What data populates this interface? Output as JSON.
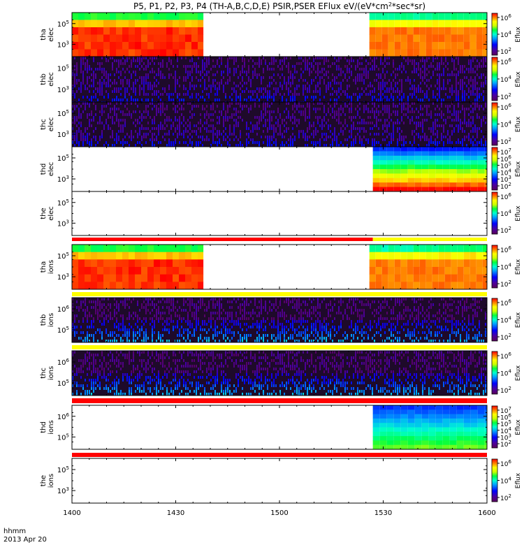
{
  "chart_data": {
    "type": "heatmap",
    "title": "P5, P1, P2, P3, P4 (TH-A,B,C,D,E) PSIR,PSER EFlux eV/(eV*cm",
    "title_sup": "2",
    "title_end": "*sec*sr)",
    "x_time_label": "hhmm",
    "x_date_label": "2013 Apr 20",
    "x_ticks": [
      "1400",
      "1430",
      "1500",
      "1530",
      "1600"
    ],
    "xlim_minutes": [
      0,
      120
    ],
    "colorbar_label": "Eflux",
    "panels": [
      {
        "name": "tha elec",
        "probe": "tha",
        "species": "elec",
        "y_ticks": [
          "10^5",
          "10^3"
        ],
        "cbar_ticks": [
          "10^6",
          "10^4",
          "10^2"
        ],
        "coverage_minutes": [
          [
            0,
            38
          ],
          [
            86,
            120
          ]
        ],
        "pattern": "dense_red",
        "bar_below": null
      },
      {
        "name": "thb elec",
        "probe": "thb",
        "species": "elec",
        "y_ticks": [
          "10^5",
          "10^3"
        ],
        "cbar_ticks": [
          "10^6",
          "10^4",
          "10^2"
        ],
        "coverage_minutes": [
          [
            0,
            120
          ]
        ],
        "pattern": "dark_noise",
        "bar_below": null
      },
      {
        "name": "thc elec",
        "probe": "thc",
        "species": "elec",
        "y_ticks": [
          "10^5",
          "10^3"
        ],
        "cbar_ticks": [
          "10^6",
          "10^4",
          "10^2"
        ],
        "coverage_minutes": [
          [
            0,
            120
          ]
        ],
        "pattern": "dark_noise",
        "bar_below": null
      },
      {
        "name": "thd elec",
        "probe": "thd",
        "species": "elec",
        "y_ticks": [
          "10^5",
          "10^3"
        ],
        "cbar_ticks": [
          "10^7",
          "10^6",
          "10^5",
          "10^4",
          "10^3",
          "10^2"
        ],
        "coverage_minutes": [
          [
            87,
            120
          ]
        ],
        "pattern": "gradient_blue_to_red",
        "bar_below": null
      },
      {
        "name": "the elec",
        "probe": "the",
        "species": "elec",
        "y_ticks": [
          "10^5",
          "10^3"
        ],
        "cbar_ticks": [
          "10^6",
          "10^4",
          "10^2"
        ],
        "coverage_minutes": [],
        "pattern": "empty",
        "bar_below": [
          {
            "from": 0,
            "to": 87,
            "color": "#ff0000"
          },
          {
            "from": 87,
            "to": 120,
            "color": "#ffff00"
          }
        ]
      },
      {
        "name": "tha ions",
        "probe": "tha",
        "species": "ions",
        "y_ticks": [
          "10^5",
          "10^3"
        ],
        "cbar_ticks": [
          "10^6",
          "10^4",
          "10^2"
        ],
        "coverage_minutes": [
          [
            0,
            38
          ],
          [
            86,
            120
          ]
        ],
        "pattern": "dense_red",
        "bar_below": [
          {
            "from": 0,
            "to": 120,
            "color": "#ffff00"
          }
        ]
      },
      {
        "name": "thb ions",
        "probe": "thb",
        "species": "ions",
        "y_ticks": [
          "10^6",
          "10^5"
        ],
        "cbar_ticks": [
          "10^6",
          "10^4",
          "10^2"
        ],
        "coverage_minutes": [
          [
            0,
            120
          ]
        ],
        "pattern": "dark_noise_blue",
        "bar_below": [
          {
            "from": 0,
            "to": 120,
            "color": "#ffff00"
          }
        ]
      },
      {
        "name": "thc ions",
        "probe": "thc",
        "species": "ions",
        "y_ticks": [
          "10^6",
          "10^5"
        ],
        "cbar_ticks": [
          "10^6",
          "10^4",
          "10^2"
        ],
        "coverage_minutes": [
          [
            0,
            120
          ]
        ],
        "pattern": "dark_noise_blue",
        "bar_below": [
          {
            "from": 0,
            "to": 120,
            "color": "#ff0000"
          }
        ]
      },
      {
        "name": "thd ions",
        "probe": "thd",
        "species": "ions",
        "y_ticks": [
          "10^6",
          "10^5"
        ],
        "cbar_ticks": [
          "10^7",
          "10^6",
          "10^5",
          "10^4",
          "10^3",
          "10^2"
        ],
        "coverage_minutes": [
          [
            87,
            120
          ]
        ],
        "pattern": "gradient_blue_to_green",
        "bar_below": [
          {
            "from": 0,
            "to": 120,
            "color": "#ff0000"
          }
        ]
      },
      {
        "name": "the ions",
        "probe": "the",
        "species": "ions",
        "y_ticks": [
          "10^5",
          "10^3"
        ],
        "cbar_ticks": [
          "10^6",
          "10^4",
          "10^2"
        ],
        "coverage_minutes": [],
        "pattern": "empty",
        "bar_below": null
      }
    ]
  }
}
